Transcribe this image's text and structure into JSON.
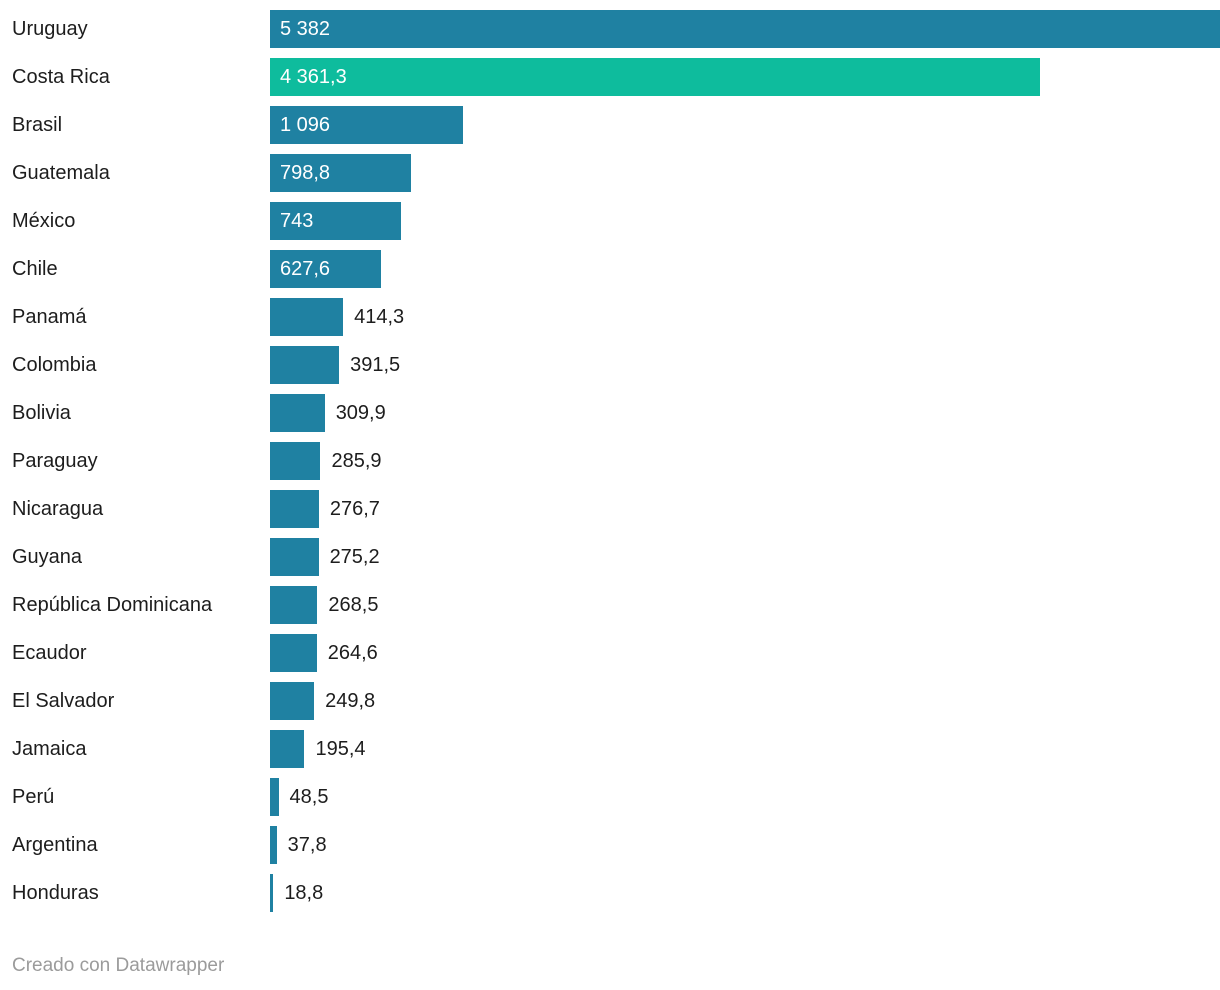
{
  "chart_data": {
    "type": "bar",
    "orientation": "horizontal",
    "title": "",
    "xlabel": "",
    "ylabel": "",
    "xlim": [
      0,
      5382
    ],
    "grid": false,
    "legend": false,
    "categories": [
      "Uruguay",
      "Costa Rica",
      "Brasil",
      "Guatemala",
      "México",
      "Chile",
      "Panamá",
      "Colombia",
      "Bolivia",
      "Paraguay",
      "Nicaragua",
      "Guyana",
      "República Dominicana",
      "Ecaudor",
      "El Salvador",
      "Jamaica",
      "Perú",
      "Argentina",
      "Honduras"
    ],
    "values": [
      5382,
      4361.3,
      1096,
      798.8,
      743,
      627.6,
      414.3,
      391.5,
      309.9,
      285.9,
      276.7,
      275.2,
      268.5,
      264.6,
      249.8,
      195.4,
      48.5,
      37.8,
      18.8
    ],
    "value_labels": [
      "5 382",
      "4 361,3",
      "1 096",
      "798,8",
      "743",
      "627,6",
      "414,3",
      "391,5",
      "309,9",
      "285,9",
      "276,7",
      "275,2",
      "268,5",
      "264,6",
      "249,8",
      "195,4",
      "48,5",
      "37,8",
      "18,8"
    ],
    "highlight_category": "Costa Rica",
    "colors": {
      "bar_default": "#1f81a2",
      "bar_highlight": "#0ebc9d",
      "value_inside_text": "#ffffff",
      "value_outside_text": "#1d1d1d",
      "category_text": "#1d1d1d"
    }
  },
  "footer": {
    "credit": "Creado con Datawrapper"
  }
}
